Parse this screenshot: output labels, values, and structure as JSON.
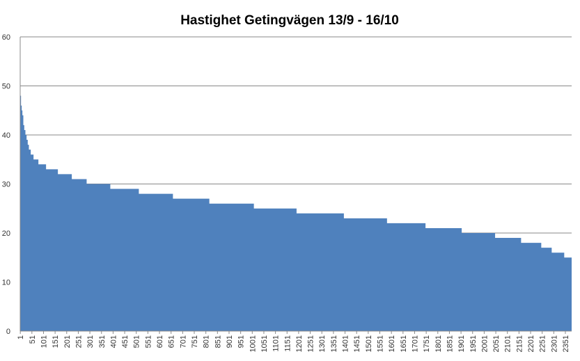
{
  "chart_data": {
    "type": "step-area",
    "title": "Hastighet Getingvägen 13/9 - 16/10",
    "x": [
      1,
      2,
      4,
      7,
      10,
      14,
      18,
      23,
      28,
      33,
      38,
      46,
      58,
      79,
      112,
      163,
      223,
      287,
      389,
      512,
      659,
      816,
      1008,
      1192,
      1396,
      1582,
      1748,
      1904,
      2048,
      2160,
      2247,
      2292,
      2346,
      2378
    ],
    "values": [
      51,
      48,
      46,
      45,
      44,
      42,
      41,
      40,
      39,
      38,
      37,
      36,
      35,
      34,
      33,
      32,
      31,
      30,
      29,
      28,
      27,
      26,
      25,
      24,
      23,
      22,
      21,
      20,
      19,
      18,
      17,
      16,
      15,
      15
    ],
    "color": "#4f81bd",
    "xlim": [
      0.5,
      2378
    ],
    "xticks": [
      1,
      51,
      101,
      151,
      201,
      251,
      301,
      351,
      401,
      451,
      501,
      551,
      601,
      651,
      701,
      751,
      801,
      851,
      901,
      951,
      1001,
      1051,
      1101,
      1151,
      1201,
      1251,
      1301,
      1351,
      1401,
      1451,
      1501,
      1551,
      1601,
      1651,
      1701,
      1751,
      1801,
      1851,
      1901,
      1951,
      2001,
      2051,
      2101,
      2151,
      2201,
      2251,
      2301,
      2351
    ],
    "ylim": [
      0,
      60
    ],
    "yticks": [
      0,
      10,
      20,
      30,
      40,
      50,
      60
    ],
    "grid": true
  }
}
